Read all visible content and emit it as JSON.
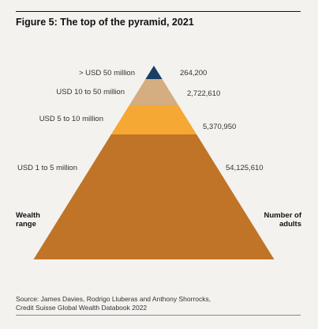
{
  "title": "Figure 5: The top of the pyramid, 2021",
  "chart_data": {
    "type": "pyramid",
    "title": "Figure 5: The top of the pyramid, 2021",
    "left_axis_label": [
      "Wealth",
      "range"
    ],
    "right_axis_label": [
      "Number of",
      "adults"
    ],
    "tiers": [
      {
        "range": "> USD 50 million",
        "value_label": "264,200",
        "value": 264200,
        "color": "#1a3f63"
      },
      {
        "range": "USD 10 to 50 million",
        "value_label": "2,722,610",
        "value": 2722610,
        "color": "#d4ad80"
      },
      {
        "range": "USD 5 to 10 million",
        "value_label": "5,370,950",
        "value": 5370950,
        "color": "#f5a833"
      },
      {
        "range": "USD 1 to 5 million",
        "value_label": "54,125,610",
        "value": 54125610,
        "color": "#c07428"
      }
    ]
  },
  "source": [
    "Source: James Davies, Rodrigo Lluberas and Anthony Shorrocks,",
    "Credit Suisse Global Wealth Databook 2022"
  ]
}
